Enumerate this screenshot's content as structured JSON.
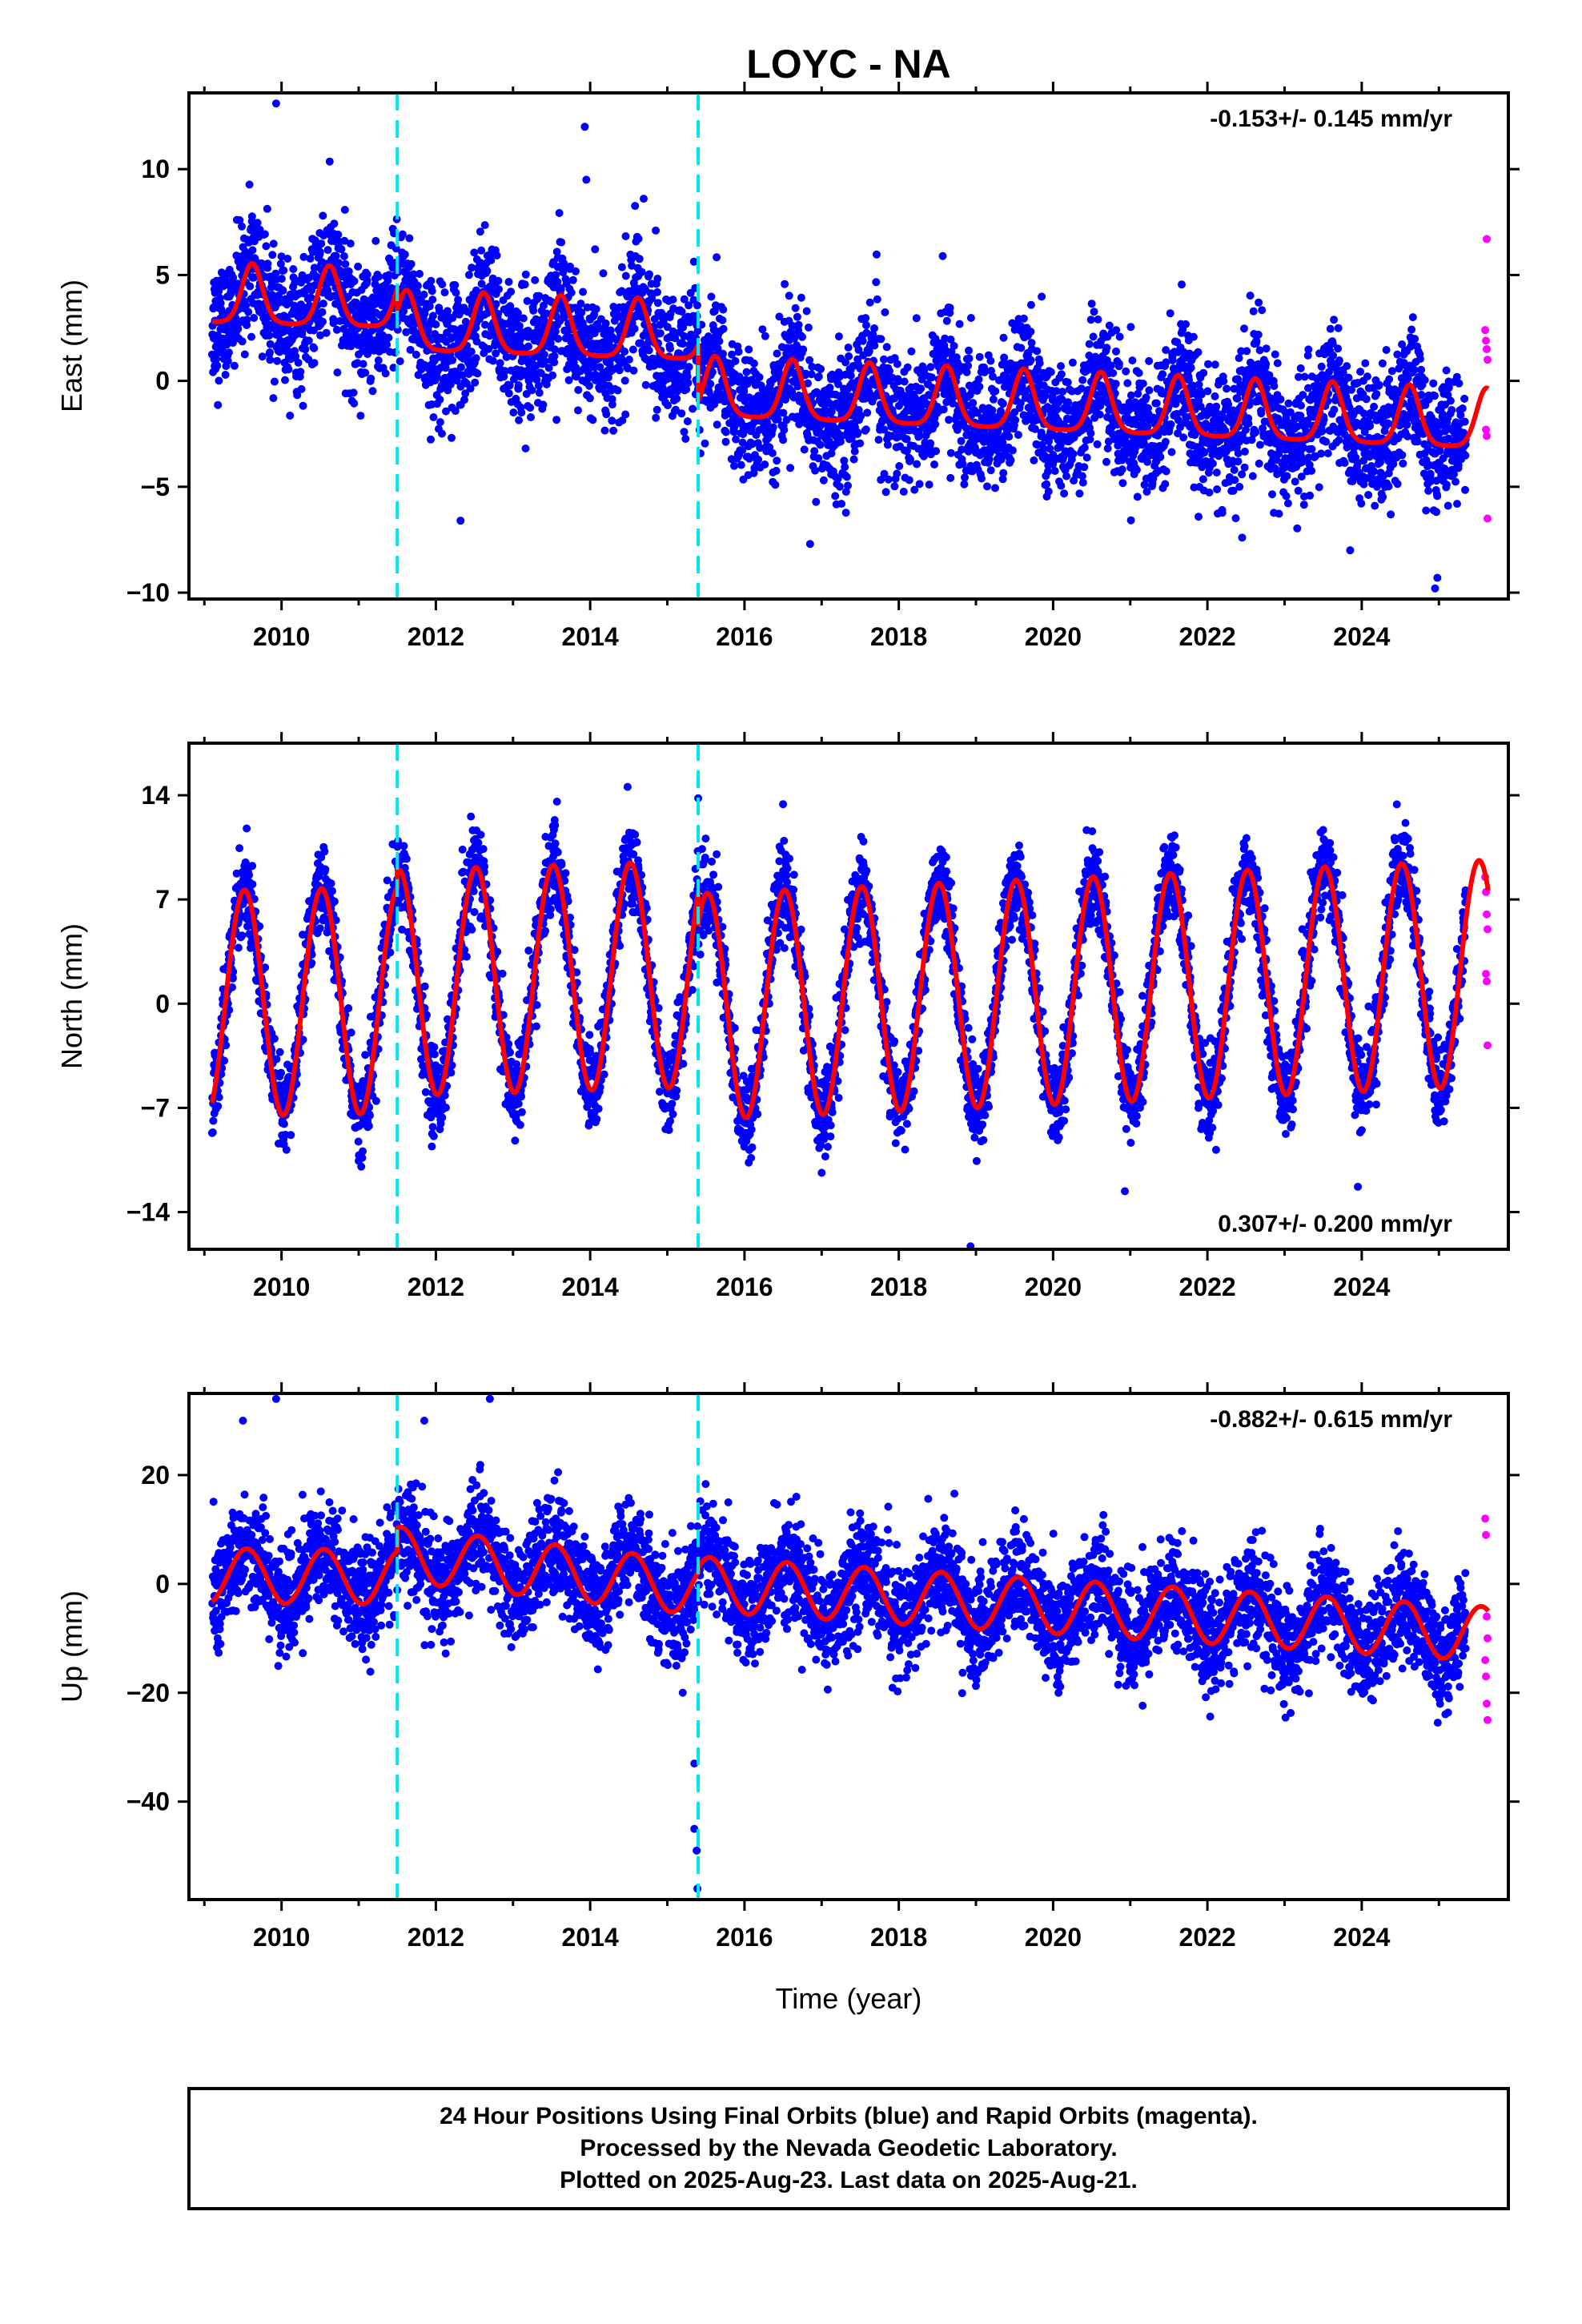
{
  "chart_data": {
    "title": "LOYC - NA",
    "type": "scatter",
    "xlabel": "Time (year)",
    "xlim": [
      2008.8,
      2025.9
    ],
    "xticks": [
      2010,
      2012,
      2014,
      2016,
      2018,
      2020,
      2022,
      2024
    ],
    "breaks": [
      2011.5,
      2015.4
    ],
    "last_final_year": 2025.35,
    "last_year": 2025.64,
    "colors": {
      "final": "#0000ff",
      "rapid": "#ff00ff",
      "model": "#ff0000",
      "break": "#00e6f0"
    },
    "panels": [
      {
        "name": "east",
        "ylabel": "East (mm)",
        "ylim": [
          -10.3,
          13.6
        ],
        "yticks": [
          10,
          5,
          0,
          -5,
          -10
        ],
        "rate": "-0.153+/- 0.145 mm/yr",
        "rate_position": "top-right",
        "model": {
          "segments": [
            {
              "start": 2009.1,
              "end": 2011.5,
              "offset": 2.8,
              "trend": -0.1
            },
            {
              "start": 2011.5,
              "end": 2015.4,
              "offset": 1.5,
              "trend": -0.12
            },
            {
              "start": 2015.4,
              "end": 2025.64,
              "offset": -1.6,
              "trend": -0.15
            }
          ],
          "seasonal_peak": 2.8,
          "peak_phase": 0.62,
          "peak_width": 0.13,
          "scatter_sd": 1.5
        },
        "outliers": [
          [
            2009.93,
            13.1
          ],
          [
            2013.93,
            12.0
          ],
          [
            2013.95,
            9.5
          ],
          [
            2012.32,
            -6.6
          ],
          [
            2014.85,
            7.1
          ],
          [
            2022.45,
            -7.4
          ],
          [
            2023.85,
            -8.0
          ],
          [
            2024.95,
            -9.8
          ],
          [
            2024.98,
            -9.3
          ],
          [
            2016.85,
            -7.7
          ]
        ],
        "rapid": [
          [
            2025.62,
            6.7
          ],
          [
            2025.6,
            2.4
          ],
          [
            2025.61,
            1.9
          ],
          [
            2025.62,
            1.5
          ],
          [
            2025.63,
            1.0
          ],
          [
            2025.61,
            -2.3
          ],
          [
            2025.62,
            -2.6
          ],
          [
            2025.63,
            -6.5
          ]
        ]
      },
      {
        "name": "north",
        "ylabel": "North (mm)",
        "ylim": [
          -16.5,
          17.5
        ],
        "yticks": [
          14,
          7,
          0,
          -7,
          -14
        ],
        "rate": "0.307+/- 0.200 mm/yr",
        "rate_position": "bottom-right",
        "model": {
          "segments": [
            {
              "start": 2009.1,
              "end": 2011.5,
              "offset": 0.0,
              "trend": 0.1
            },
            {
              "start": 2011.5,
              "end": 2015.4,
              "offset": 1.4,
              "trend": 0.15
            },
            {
              "start": 2015.4,
              "end": 2025.64,
              "offset": -0.2,
              "trend": 0.22
            }
          ],
          "seasonal_amp": 7.6,
          "peak_phase": 0.52,
          "scatter_sd": 1.4
        },
        "outliers": [
          [
            2014.55,
            17.7
          ],
          [
            2015.4,
            13.8
          ],
          [
            2016.5,
            13.4
          ],
          [
            2018.93,
            -16.3
          ],
          [
            2023.95,
            -12.3
          ],
          [
            2020.93,
            -12.6
          ]
        ],
        "rapid": [
          [
            2025.6,
            8.5
          ],
          [
            2025.61,
            7.5
          ],
          [
            2025.62,
            6.0
          ],
          [
            2025.63,
            5.0
          ],
          [
            2025.61,
            2.0
          ],
          [
            2025.62,
            1.5
          ],
          [
            2025.63,
            -2.8
          ]
        ]
      },
      {
        "name": "up",
        "ylabel": "Up (mm)",
        "ylim": [
          -58,
          35
        ],
        "yticks": [
          20,
          0,
          -20,
          -40
        ],
        "rate": "-0.882+/- 0.615 mm/yr",
        "rate_position": "top-right",
        "model": {
          "segments": [
            {
              "start": 2009.1,
              "end": 2011.5,
              "offset": 1.5,
              "trend": -0.1
            },
            {
              "start": 2011.5,
              "end": 2015.4,
              "offset": 5.5,
              "trend": -1.6
            },
            {
              "start": 2015.4,
              "end": 2025.64,
              "offset": 0.0,
              "trend": -0.9
            }
          ],
          "seasonal_amp": 5.0,
          "peak_phase": 0.55,
          "scatter_sd": 4.8
        },
        "outliers": [
          [
            2009.93,
            34.0
          ],
          [
            2012.7,
            34.0
          ],
          [
            2015.35,
            -33.0
          ],
          [
            2015.35,
            -45.0
          ],
          [
            2015.38,
            -49.0
          ],
          [
            2015.39,
            -56.0
          ],
          [
            2009.5,
            30.0
          ],
          [
            2011.85,
            30.0
          ],
          [
            2015.2,
            -20.0
          ]
        ],
        "rapid": [
          [
            2025.6,
            12.0
          ],
          [
            2025.61,
            9.0
          ],
          [
            2025.62,
            -6.0
          ],
          [
            2025.63,
            -10.0
          ],
          [
            2025.6,
            -14.0
          ],
          [
            2025.61,
            -17.0
          ],
          [
            2025.62,
            -22.0
          ],
          [
            2025.63,
            -25.0
          ]
        ]
      }
    ]
  },
  "footer": {
    "line1": "24 Hour Positions Using Final Orbits (blue) and Rapid Orbits (magenta).",
    "line2": "Processed by the Nevada Geodetic Laboratory.",
    "line3": "Plotted on 2025-Aug-23. Last data on 2025-Aug-21."
  }
}
